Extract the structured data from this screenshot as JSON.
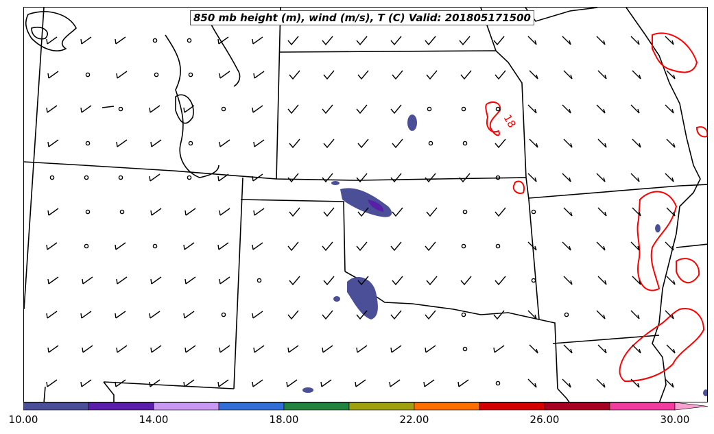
{
  "title": "850 mb height (m), wind (m/s), T (C) Valid: 201805171500",
  "contour_label": "18",
  "colorbar": {
    "min": 10,
    "max": 31,
    "colors": [
      "#4b4f98",
      "#5a1fa8",
      "#c898f5",
      "#2f6fd6",
      "#218440",
      "#9ea010",
      "#ff6e00",
      "#d40000",
      "#a80022",
      "#f03c9c",
      "#f8a0d0"
    ],
    "ticks": [
      {
        "value": 10,
        "label": "10.00"
      },
      {
        "value": 14,
        "label": "14.00"
      },
      {
        "value": 18,
        "label": "18.00"
      },
      {
        "value": 22,
        "label": "22.00"
      },
      {
        "value": 26,
        "label": "26.00"
      },
      {
        "value": 30,
        "label": "30.00"
      }
    ]
  },
  "colors": {
    "borders": "#000000",
    "temperature_contour": "#ff0000",
    "shading": "#4b4f98"
  }
}
